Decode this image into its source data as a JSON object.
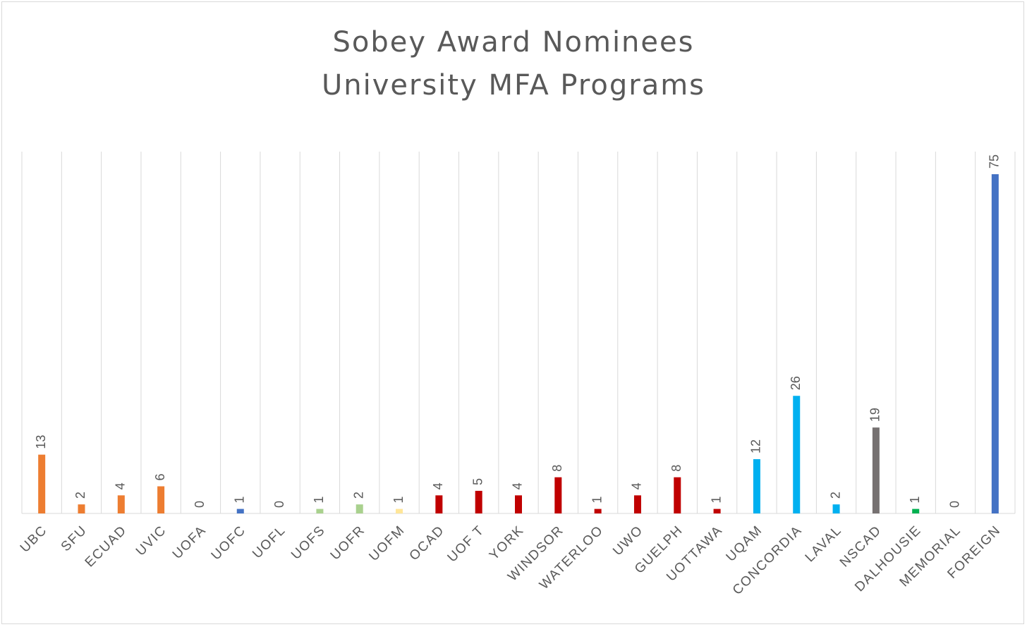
{
  "chart_data": {
    "type": "bar",
    "title": [
      "Sobey Award Nominees",
      "University MFA Programs"
    ],
    "xlabel": "",
    "ylabel": "",
    "ylim": [
      0,
      80
    ],
    "grid": "vertical category lines",
    "legend": "none",
    "categories": [
      "UBC",
      "SFU",
      "ECUAD",
      "UVIC",
      "UOFA",
      "UOFC",
      "UOFL",
      "UOFS",
      "UOFR",
      "UOFM",
      "OCAD",
      "UOF T",
      "YORK",
      "WINDSOR",
      "WATERLOO",
      "UWO",
      "GUELPH",
      "UOTTAWA",
      "UQAM",
      "CONCORDIA",
      "LAVAL",
      "NSCAD",
      "DALHOUSIE",
      "MEMORIAL",
      "FOREIGN"
    ],
    "values": [
      13,
      2,
      4,
      6,
      0,
      1,
      0,
      1,
      2,
      1,
      4,
      5,
      4,
      8,
      1,
      4,
      8,
      1,
      12,
      26,
      2,
      19,
      1,
      0,
      75
    ],
    "colors": [
      "#ed7d31",
      "#ed7d31",
      "#ed7d31",
      "#ed7d31",
      "#ed7d31",
      "#4472c4",
      "#4472c4",
      "#a9d18e",
      "#a9d18e",
      "#ffe699",
      "#c00000",
      "#c00000",
      "#c00000",
      "#c00000",
      "#c00000",
      "#c00000",
      "#c00000",
      "#c00000",
      "#00b0f0",
      "#00b0f0",
      "#00b0f0",
      "#767171",
      "#00b050",
      "#00b050",
      "#4472c4"
    ]
  }
}
